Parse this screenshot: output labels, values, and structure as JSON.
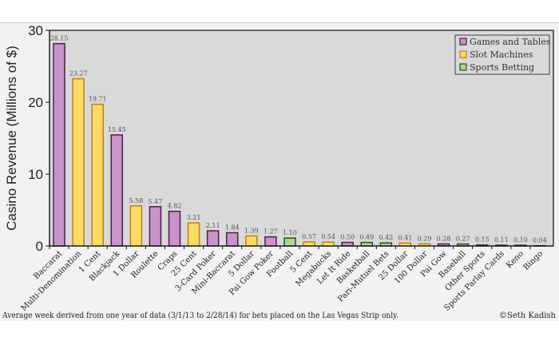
{
  "chart_data": {
    "type": "bar",
    "ylabel": "Casino Revenue (Millions of $)",
    "xlabel": "",
    "ylim": [
      0,
      30
    ],
    "yticks": [
      0,
      10,
      20,
      30
    ],
    "grid": false,
    "legend_placement": "top-right",
    "footnote": "Average week derived from one year of data (3/1/13 to 2/28/14) for bets placed on the Las Vegas Strip only.",
    "credit": "©Seth Kadish",
    "legend": [
      {
        "name": "Games and Tables",
        "color": "#c994c7"
      },
      {
        "name": "Slot Machines",
        "color": "#fdd966"
      },
      {
        "name": "Sports Betting",
        "color": "#a9d88c"
      }
    ],
    "categories": [
      "Baccarat",
      "Multi-Denomination",
      "1 Cent",
      "Blackjack",
      "1 Dollar",
      "Roulette",
      "Craps",
      "25 Cent",
      "3-Card Poker",
      "Mini-Baccarat",
      "5 Dollar",
      "Pai Gow Poker",
      "Football",
      "5 Cent",
      "Megabucks",
      "Let It Ride",
      "Basketball",
      "Pari-Mutuel Bets",
      "25 Dollar",
      "100 Dollar",
      "Pai Gow",
      "Baseball",
      "Other Sports",
      "Sports Parlay Cards",
      "Keno",
      "Bingo"
    ],
    "values": [
      28.15,
      23.27,
      19.71,
      15.45,
      5.58,
      5.47,
      4.82,
      3.21,
      2.11,
      1.84,
      1.39,
      1.27,
      1.1,
      0.57,
      0.54,
      0.5,
      0.49,
      0.42,
      0.41,
      0.29,
      0.28,
      0.27,
      0.15,
      0.11,
      0.1,
      0.04
    ],
    "value_labels": [
      "28.15",
      "23.27",
      "19.71",
      "15.45",
      "5.58",
      "5.47",
      "4.82",
      "3.21",
      "2.11",
      "1.84",
      "1.39",
      "1.27",
      "1.10",
      "0.57",
      "0.54",
      "0.50",
      "0.49",
      "0.42",
      "0.41",
      "0.29",
      "0.28",
      "0.27",
      "0.15",
      "0.11",
      "0.10",
      "0.04"
    ],
    "groups": [
      "Games and Tables",
      "Slot Machines",
      "Slot Machines",
      "Games and Tables",
      "Slot Machines",
      "Games and Tables",
      "Games and Tables",
      "Slot Machines",
      "Games and Tables",
      "Games and Tables",
      "Slot Machines",
      "Games and Tables",
      "Sports Betting",
      "Slot Machines",
      "Slot Machines",
      "Games and Tables",
      "Sports Betting",
      "Sports Betting",
      "Slot Machines",
      "Slot Machines",
      "Games and Tables",
      "Sports Betting",
      "Sports Betting",
      "Sports Betting",
      "Games and Tables",
      "Games and Tables"
    ]
  }
}
